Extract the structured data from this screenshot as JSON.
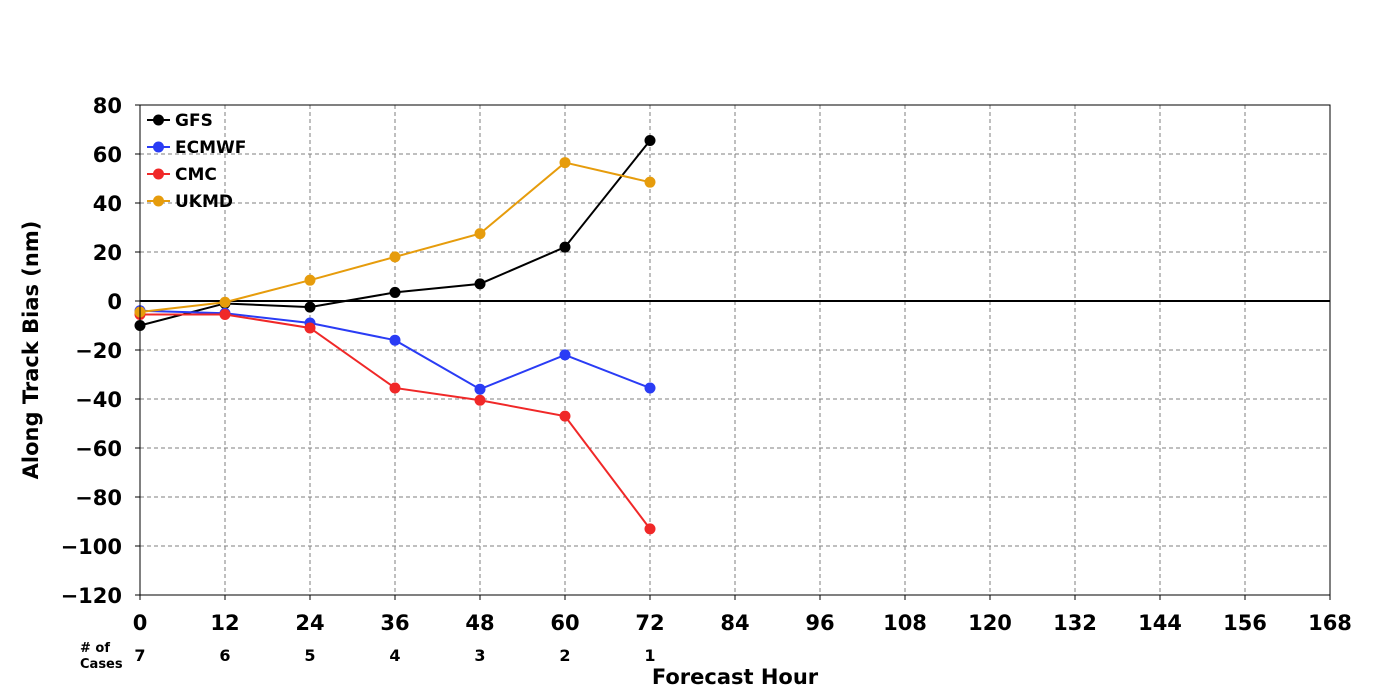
{
  "chart_data": {
    "type": "line",
    "xlabel": "Forecast Hour",
    "ylabel": "Along Track Bias (nm)",
    "xlim": [
      0,
      168
    ],
    "ylim": [
      -120,
      80
    ],
    "xticks": [
      0,
      12,
      24,
      36,
      48,
      60,
      72,
      84,
      96,
      108,
      120,
      132,
      144,
      156,
      168
    ],
    "yticks": [
      80,
      60,
      40,
      20,
      0,
      -20,
      -40,
      -60,
      -80,
      -100,
      -120
    ],
    "ytick_labels": [
      "80",
      "60",
      "40",
      "20",
      "0",
      "−20",
      "−40",
      "−60",
      "−80",
      "−100",
      "−120"
    ],
    "grid": true,
    "legend_position": "top-left",
    "cases_label_line1": "# of",
    "cases_label_line2": "Cases",
    "cases": [
      {
        "x": 0,
        "n": "7"
      },
      {
        "x": 12,
        "n": "6"
      },
      {
        "x": 24,
        "n": "5"
      },
      {
        "x": 36,
        "n": "4"
      },
      {
        "x": 48,
        "n": "3"
      },
      {
        "x": 60,
        "n": "2"
      },
      {
        "x": 72,
        "n": "1"
      }
    ],
    "x": [
      0,
      12,
      24,
      36,
      48,
      60,
      72
    ],
    "series": [
      {
        "name": "GFS",
        "color": "#000000",
        "values": [
          -10,
          -1,
          -2.5,
          3.5,
          7,
          22,
          65.5
        ]
      },
      {
        "name": "ECMWF",
        "color": "#2a3cf5",
        "values": [
          -4,
          -5,
          -9,
          -16,
          -36,
          -22,
          -35.5
        ]
      },
      {
        "name": "CMC",
        "color": "#f02828",
        "values": [
          -5.5,
          -5.5,
          -11,
          -35.5,
          -40.5,
          -47,
          -93
        ]
      },
      {
        "name": "UKMD",
        "color": "#e69c0c",
        "values": [
          -4.5,
          -0.5,
          8.5,
          18,
          27.5,
          56.5,
          48.5
        ]
      }
    ]
  }
}
